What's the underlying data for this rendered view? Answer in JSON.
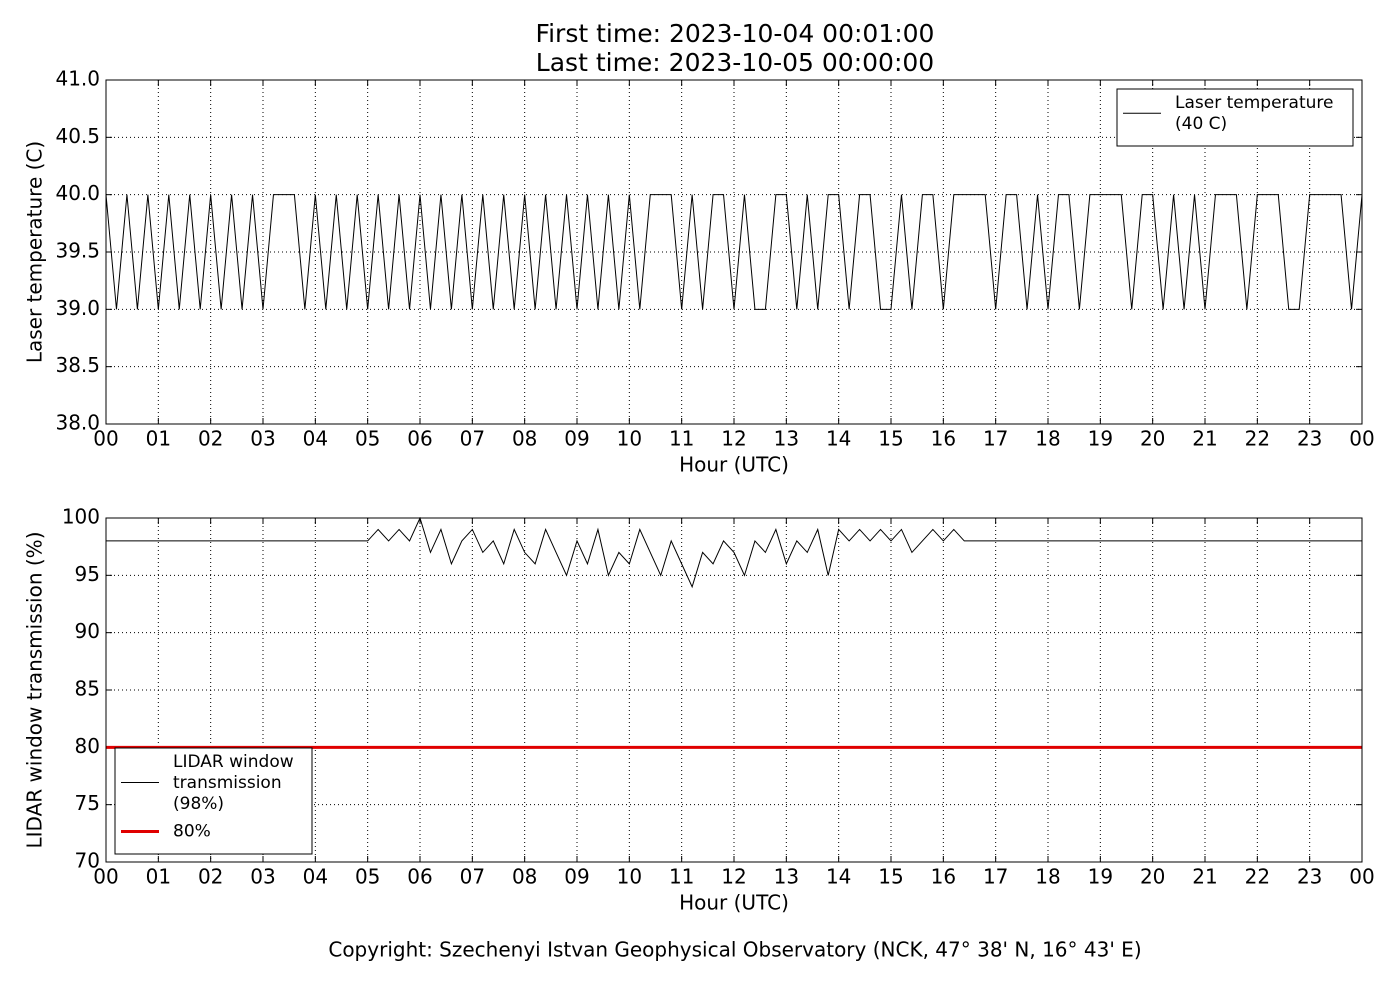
{
  "chart_data": [
    {
      "type": "line",
      "title": "First time: 2023-10-04 00:01:00",
      "subtitle": "Last time: 2023-10-05 00:00:00",
      "x_label": "Hour (UTC)",
      "y_label": "Laser temperature (C)",
      "x": [
        0,
        0.2,
        0.4,
        0.6,
        0.8,
        1,
        1.2,
        1.4,
        1.6,
        1.8,
        2,
        2.2,
        2.4,
        2.6,
        2.8,
        3,
        3.2,
        3.4,
        3.6,
        3.8,
        4,
        4.2,
        4.4,
        4.6,
        4.8,
        5,
        5.2,
        5.4,
        5.6,
        5.8,
        6,
        6.2,
        6.4,
        6.6,
        6.8,
        7,
        7.2,
        7.4,
        7.6,
        7.8,
        8,
        8.2,
        8.4,
        8.6,
        8.8,
        9,
        9.2,
        9.4,
        9.6,
        9.8,
        10,
        10.2,
        10.4,
        10.6,
        10.8,
        11,
        11.2,
        11.4,
        11.6,
        11.8,
        12,
        12.2,
        12.4,
        12.6,
        12.8,
        13,
        13.2,
        13.4,
        13.6,
        13.8,
        14,
        14.2,
        14.4,
        14.6,
        14.8,
        15,
        15.2,
        15.4,
        15.6,
        15.8,
        16,
        16.2,
        16.4,
        16.6,
        16.8,
        17,
        17.2,
        17.4,
        17.6,
        17.8,
        18,
        18.2,
        18.4,
        18.6,
        18.8,
        19,
        19.2,
        19.4,
        19.6,
        19.8,
        20,
        20.2,
        20.4,
        20.6,
        20.8,
        21,
        21.2,
        21.4,
        21.6,
        21.8,
        22,
        22.2,
        22.4,
        22.6,
        22.8,
        23,
        23.2,
        23.4,
        23.6,
        23.8,
        24
      ],
      "series": [
        {
          "name": "Laser temperature\n(40 C)",
          "color": "#000000",
          "values": [
            40,
            39,
            40,
            39,
            40,
            39,
            40,
            39,
            40,
            39,
            40,
            39,
            40,
            39,
            40,
            39,
            40,
            40,
            40,
            39,
            40,
            39,
            40,
            39,
            40,
            39,
            40,
            39,
            40,
            39,
            40,
            39,
            40,
            39,
            40,
            39,
            40,
            39,
            40,
            39,
            40,
            39,
            40,
            39,
            40,
            39,
            40,
            39,
            40,
            39,
            40,
            39,
            40,
            40,
            40,
            39,
            40,
            39,
            40,
            40,
            39,
            40,
            39,
            39,
            40,
            40,
            39,
            40,
            39,
            40,
            40,
            39,
            40,
            40,
            39,
            39,
            40,
            39,
            40,
            40,
            39,
            40,
            40,
            40,
            40,
            39,
            40,
            40,
            39,
            40,
            39,
            40,
            40,
            39,
            40,
            40,
            40,
            40,
            39,
            40,
            40,
            39,
            40,
            39,
            40,
            39,
            40,
            40,
            40,
            39,
            40,
            40,
            40,
            39,
            39,
            40,
            40,
            40,
            40,
            39,
            40
          ]
        }
      ],
      "xlim": [
        0,
        24
      ],
      "xticks": [
        {
          "value": 0,
          "label": "00"
        },
        {
          "value": 1,
          "label": "01"
        },
        {
          "value": 2,
          "label": "02"
        },
        {
          "value": 3,
          "label": "03"
        },
        {
          "value": 4,
          "label": "04"
        },
        {
          "value": 5,
          "label": "05"
        },
        {
          "value": 6,
          "label": "06"
        },
        {
          "value": 7,
          "label": "07"
        },
        {
          "value": 8,
          "label": "08"
        },
        {
          "value": 9,
          "label": "09"
        },
        {
          "value": 10,
          "label": "10"
        },
        {
          "value": 11,
          "label": "11"
        },
        {
          "value": 12,
          "label": "12"
        },
        {
          "value": 13,
          "label": "13"
        },
        {
          "value": 14,
          "label": "14"
        },
        {
          "value": 15,
          "label": "15"
        },
        {
          "value": 16,
          "label": "16"
        },
        {
          "value": 17,
          "label": "17"
        },
        {
          "value": 18,
          "label": "18"
        },
        {
          "value": 19,
          "label": "19"
        },
        {
          "value": 20,
          "label": "20"
        },
        {
          "value": 21,
          "label": "21"
        },
        {
          "value": 22,
          "label": "22"
        },
        {
          "value": 23,
          "label": "23"
        },
        {
          "value": 24,
          "label": "00"
        }
      ],
      "ylim": [
        38,
        41
      ],
      "yticks": [
        {
          "value": 38,
          "label": "38.0"
        },
        38.5,
        {
          "value": 39,
          "label": "39.0"
        },
        39.5,
        {
          "value": 40,
          "label": "40.0"
        },
        40.5,
        {
          "value": 41,
          "label": "41.0"
        }
      ],
      "grid": true,
      "legend": "upper right"
    },
    {
      "type": "line",
      "x_label": "Hour (UTC)",
      "y_label": "LIDAR window transmission (%)",
      "x": [
        0,
        0.2,
        0.4,
        0.6,
        0.8,
        1,
        1.2,
        1.4,
        1.6,
        1.8,
        2,
        2.2,
        2.4,
        2.6,
        2.8,
        3,
        3.2,
        3.4,
        3.6,
        3.8,
        4,
        4.2,
        4.4,
        4.6,
        4.8,
        5,
        5.2,
        5.4,
        5.6,
        5.8,
        6,
        6.2,
        6.4,
        6.6,
        6.8,
        7,
        7.2,
        7.4,
        7.6,
        7.8,
        8,
        8.2,
        8.4,
        8.6,
        8.8,
        9,
        9.2,
        9.4,
        9.6,
        9.8,
        10,
        10.2,
        10.4,
        10.6,
        10.8,
        11,
        11.2,
        11.4,
        11.6,
        11.8,
        12,
        12.2,
        12.4,
        12.6,
        12.8,
        13,
        13.2,
        13.4,
        13.6,
        13.8,
        14,
        14.2,
        14.4,
        14.6,
        14.8,
        15,
        15.2,
        15.4,
        15.6,
        15.8,
        16,
        16.2,
        16.4,
        16.6,
        16.8,
        17,
        17.2,
        17.4,
        17.6,
        17.8,
        18,
        18.2,
        18.4,
        18.6,
        18.8,
        19,
        19.2,
        19.4,
        19.6,
        19.8,
        20,
        20.2,
        20.4,
        20.6,
        20.8,
        21,
        21.2,
        21.4,
        21.6,
        21.8,
        22,
        22.2,
        22.4,
        22.6,
        22.8,
        23,
        23.2,
        23.4,
        23.6,
        23.8,
        24
      ],
      "series": [
        {
          "name": "LIDAR window\ntransmission\n(98%)",
          "color": "#000000",
          "values": [
            98,
            98,
            98,
            98,
            98,
            98,
            98,
            98,
            98,
            98,
            98,
            98,
            98,
            98,
            98,
            98,
            98,
            98,
            98,
            98,
            98,
            98,
            98,
            98,
            98,
            98,
            99,
            98,
            99,
            98,
            100,
            97,
            99,
            96,
            98,
            99,
            97,
            98,
            96,
            99,
            97,
            96,
            99,
            97,
            95,
            98,
            96,
            99,
            95,
            97,
            96,
            99,
            97,
            95,
            98,
            96,
            94,
            97,
            96,
            98,
            97,
            95,
            98,
            97,
            99,
            96,
            98,
            97,
            99,
            95,
            99,
            98,
            99,
            98,
            99,
            98,
            99,
            97,
            98,
            99,
            98,
            99,
            98,
            98,
            98,
            98,
            98,
            98,
            98,
            98,
            98,
            98,
            98,
            98,
            98,
            98,
            98,
            98,
            98,
            98,
            98,
            98,
            98,
            98,
            98,
            98,
            98,
            98,
            98,
            98,
            98,
            98,
            98,
            98,
            98,
            98,
            98,
            98,
            98,
            98,
            98
          ]
        }
      ],
      "hlines": [
        {
          "name": "80%",
          "color": "#e00000",
          "y": 80
        }
      ],
      "xlim": [
        0,
        24
      ],
      "xticks": [
        {
          "value": 0,
          "label": "00"
        },
        {
          "value": 1,
          "label": "01"
        },
        {
          "value": 2,
          "label": "02"
        },
        {
          "value": 3,
          "label": "03"
        },
        {
          "value": 4,
          "label": "04"
        },
        {
          "value": 5,
          "label": "05"
        },
        {
          "value": 6,
          "label": "06"
        },
        {
          "value": 7,
          "label": "07"
        },
        {
          "value": 8,
          "label": "08"
        },
        {
          "value": 9,
          "label": "09"
        },
        {
          "value": 10,
          "label": "10"
        },
        {
          "value": 11,
          "label": "11"
        },
        {
          "value": 12,
          "label": "12"
        },
        {
          "value": 13,
          "label": "13"
        },
        {
          "value": 14,
          "label": "14"
        },
        {
          "value": 15,
          "label": "15"
        },
        {
          "value": 16,
          "label": "16"
        },
        {
          "value": 17,
          "label": "17"
        },
        {
          "value": 18,
          "label": "18"
        },
        {
          "value": 19,
          "label": "19"
        },
        {
          "value": 20,
          "label": "20"
        },
        {
          "value": 21,
          "label": "21"
        },
        {
          "value": 22,
          "label": "22"
        },
        {
          "value": 23,
          "label": "23"
        },
        {
          "value": 24,
          "label": "00"
        }
      ],
      "ylim": [
        70,
        100
      ],
      "yticks": [
        70,
        75,
        80,
        85,
        90,
        95,
        100
      ],
      "grid": true,
      "legend": "lower left"
    }
  ],
  "footer": "Copyright: Szechenyi Istvan Geophysical Observatory (NCK, 47° 38' N, 16° 43' E)"
}
